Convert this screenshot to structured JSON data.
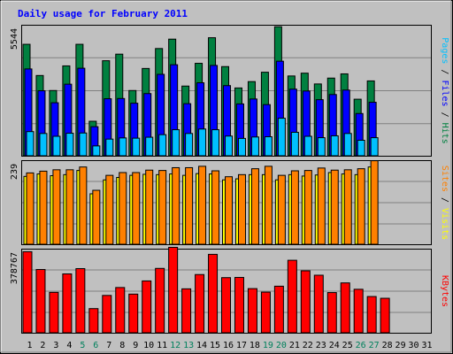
{
  "chart_data": {
    "type": "bar",
    "title": "Daily usage for February 2011",
    "days": [
      "1",
      "2",
      "3",
      "4",
      "5",
      "6",
      "7",
      "8",
      "9",
      "10",
      "11",
      "12",
      "13",
      "14",
      "15",
      "16",
      "17",
      "18",
      "19",
      "20",
      "21",
      "22",
      "23",
      "24",
      "25",
      "26",
      "27",
      "28",
      "29",
      "30",
      "31"
    ],
    "weekend_days": [
      5,
      6,
      12,
      13,
      19,
      20,
      26,
      27
    ],
    "panels": [
      {
        "id": "pages-files-hits",
        "ymax_label": "5544",
        "ymax": 5544,
        "series_labels": [
          "Pages",
          "Files",
          "Hits"
        ],
        "series_colors": [
          "#00c0ff",
          "#0000ff",
          "#008040"
        ],
        "hits": [
          4750,
          3420,
          2780,
          3830,
          4750,
          1470,
          4050,
          4330,
          2780,
          3720,
          4570,
          4970,
          2970,
          3940,
          5030,
          3800,
          2890,
          3160,
          3560,
          5500,
          3400,
          3520,
          3060,
          3310,
          3490,
          2410,
          3190,
          0,
          0,
          0,
          0
        ],
        "files": [
          3700,
          2770,
          2260,
          3050,
          3730,
          1240,
          2430,
          2440,
          2240,
          2650,
          3470,
          3880,
          2220,
          3110,
          3850,
          2990,
          2210,
          2420,
          2180,
          4030,
          2840,
          2760,
          2390,
          2610,
          2800,
          1800,
          2280,
          0,
          0,
          0,
          0
        ],
        "pages": [
          1030,
          950,
          830,
          960,
          970,
          420,
          710,
          760,
          750,
          790,
          900,
          1110,
          950,
          1140,
          1110,
          840,
          740,
          800,
          810,
          1600,
          1000,
          830,
          770,
          850,
          950,
          660,
          770,
          0,
          0,
          0,
          0
        ]
      },
      {
        "id": "visits-sites",
        "ymax_label": "239",
        "ymax": 239,
        "series_labels": [
          "Sites",
          "Visits"
        ],
        "series_colors": [
          "#ff8000",
          "#ffff00"
        ],
        "visits": [
          205,
          210,
          214,
          214,
          222,
          155,
          198,
          206,
          206,
          213,
          212,
          220,
          220,
          224,
          211,
          194,
          200,
          217,
          224,
          198,
          211,
          212,
          219,
          213,
          214,
          217,
          240,
          0,
          0,
          0,
          0
        ],
        "sites": [
          195,
          202,
          197,
          200,
          212,
          145,
          185,
          192,
          198,
          201,
          200,
          202,
          198,
          203,
          202,
          185,
          188,
          200,
          200,
          185,
          200,
          196,
          199,
          206,
          202,
          200,
          222,
          0,
          0,
          0,
          0
        ]
      },
      {
        "id": "kbytes",
        "ymax_label": "378767",
        "ymax": 378767,
        "series_labels": [
          "KBytes"
        ],
        "series_colors": [
          "#ff0000"
        ],
        "kbytes": [
          369000,
          288000,
          184000,
          268000,
          292000,
          110000,
          170000,
          206000,
          176000,
          236000,
          293000,
          389000,
          200000,
          265000,
          357000,
          251000,
          252000,
          201000,
          185000,
          212000,
          330000,
          282000,
          262000,
          183000,
          227000,
          198000,
          165000,
          157000,
          0,
          0,
          0
        ]
      }
    ],
    "grid": true
  }
}
